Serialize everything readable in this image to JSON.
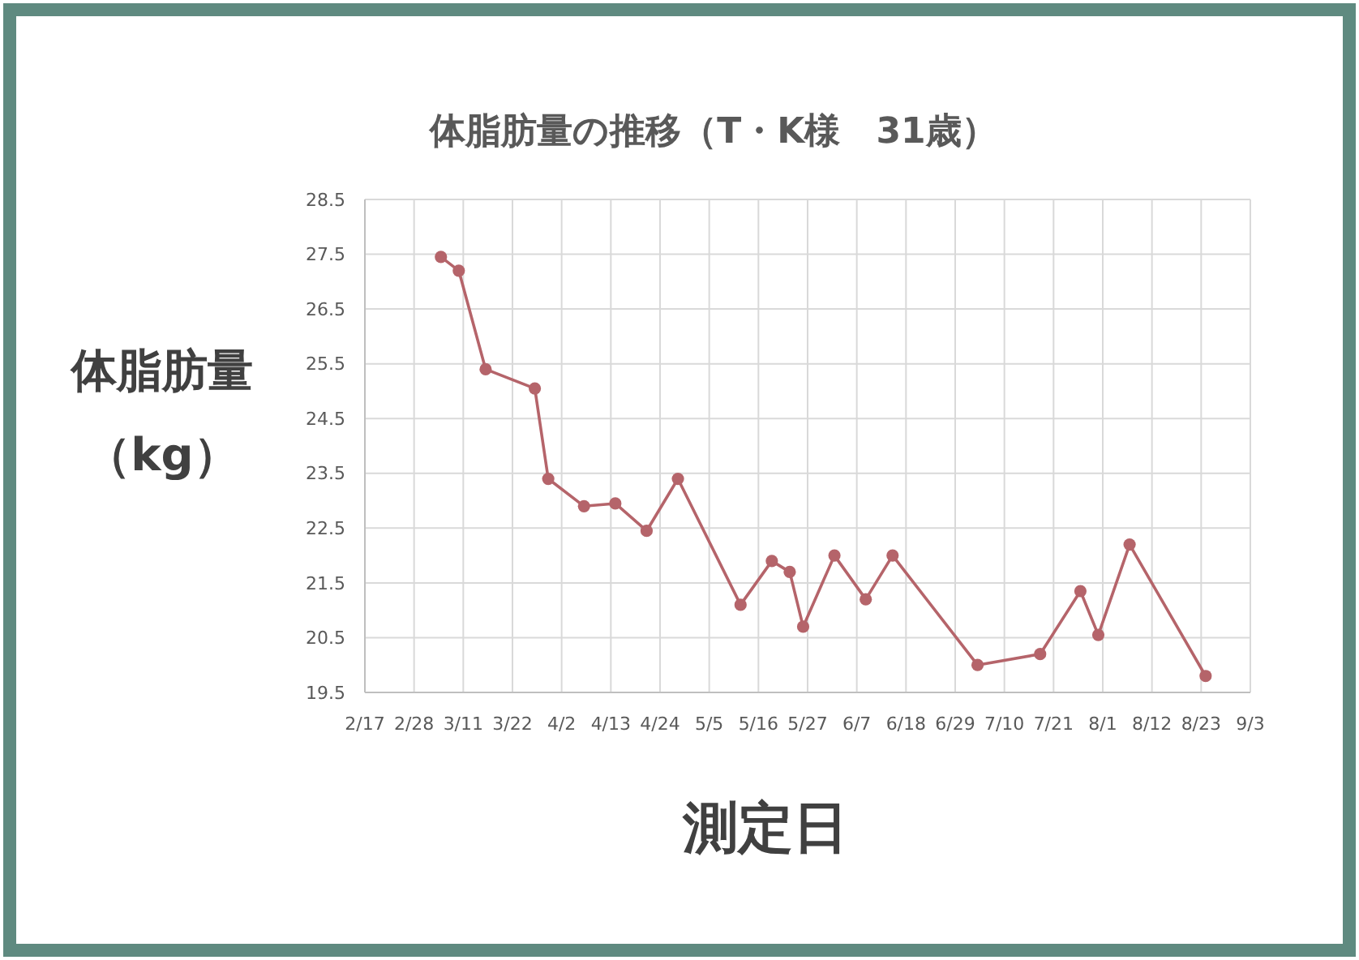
{
  "chart_data": {
    "type": "line",
    "title": "体脂肪量の推移（T・K様　31歳）",
    "xlabel": "測定日",
    "ylabel": "体脂肪量（kg）",
    "x": [
      "--03-06",
      "--03-10",
      "--03-16",
      "--03-27",
      "--03-30",
      "--04-07",
      "--04-14",
      "--04-21",
      "--04-28",
      "--05-12",
      "--05-19",
      "--05-23",
      "--05-26",
      "--06-02",
      "--06-09",
      "--06-15",
      "--07-04",
      "--07-18",
      "--07-27",
      "--07-31",
      "--08-07",
      "--08-24"
    ],
    "series": [
      {
        "color": "#b5646a",
        "values": [
          27.45,
          27.2,
          25.4,
          25.05,
          23.4,
          22.9,
          22.95,
          22.45,
          23.4,
          21.1,
          21.9,
          21.7,
          20.7,
          22.0,
          21.2,
          22.0,
          20.0,
          20.2,
          21.35,
          20.55,
          22.2,
          19.8
        ]
      }
    ],
    "xlim": [
      "--02-17",
      "--09-03"
    ],
    "xticks": [
      {
        "value": "--02-17",
        "label": "2/17"
      },
      {
        "value": "--02-28",
        "label": "2/28"
      },
      {
        "value": "--03-11",
        "label": "3/11"
      },
      {
        "value": "--03-22",
        "label": "3/22"
      },
      {
        "value": "--04-02",
        "label": "4/2"
      },
      {
        "value": "--04-13",
        "label": "4/13"
      },
      {
        "value": "--04-24",
        "label": "4/24"
      },
      {
        "value": "--05-05",
        "label": "5/5"
      },
      {
        "value": "--05-16",
        "label": "5/16"
      },
      {
        "value": "--05-27",
        "label": "5/27"
      },
      {
        "value": "--06-07",
        "label": "6/7"
      },
      {
        "value": "--06-18",
        "label": "6/18"
      },
      {
        "value": "--06-29",
        "label": "6/29"
      },
      {
        "value": "--07-10",
        "label": "7/10"
      },
      {
        "value": "--07-21",
        "label": "7/21"
      },
      {
        "value": "--08-01",
        "label": "8/1"
      },
      {
        "value": "--08-12",
        "label": "8/12"
      },
      {
        "value": "--08-23",
        "label": "8/23"
      },
      {
        "value": "--09-03",
        "label": "9/3"
      }
    ],
    "ylim": [
      19.5,
      28.5
    ],
    "yticks": [
      19.5,
      20.5,
      21.5,
      22.5,
      23.5,
      24.5,
      25.5,
      26.5,
      27.5,
      28.5
    ],
    "grid": true,
    "marker": "circle",
    "line_style": "solid"
  }
}
